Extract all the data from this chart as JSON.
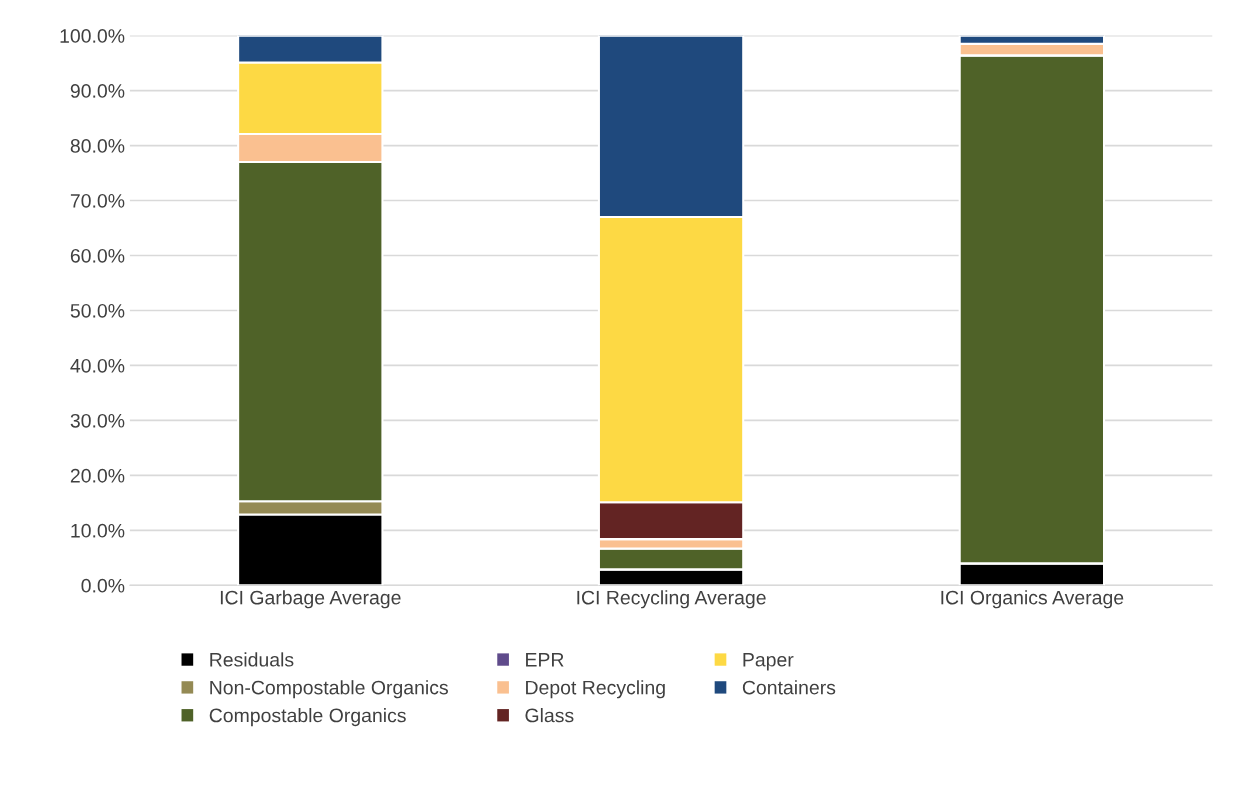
{
  "chart_data": {
    "type": "bar",
    "stacked": true,
    "categories": [
      "ICI Garbage Average",
      "ICI Recycling Average",
      "ICI Organics Average"
    ],
    "series": [
      {
        "name": "Residuals",
        "color": "#000000",
        "values": [
          12.9,
          2.9,
          4.0
        ]
      },
      {
        "name": "Non-Compostable Organics",
        "color": "#948a54",
        "values": [
          2.4,
          0,
          0
        ]
      },
      {
        "name": "Compostable Organics",
        "color": "#4f6228",
        "values": [
          61.7,
          3.8,
          92.4
        ]
      },
      {
        "name": "EPR",
        "color": "#5f4b8b",
        "values": [
          0,
          0,
          0
        ]
      },
      {
        "name": "Depot Recycling",
        "color": "#fac090",
        "values": [
          5.1,
          1.7,
          2.1
        ]
      },
      {
        "name": "Glass",
        "color": "#632423",
        "values": [
          0,
          6.7,
          0
        ]
      },
      {
        "name": "Paper",
        "color": "#fdd944",
        "values": [
          13.0,
          51.9,
          0
        ]
      },
      {
        "name": "Containers",
        "color": "#1f497d",
        "values": [
          4.9,
          33.0,
          1.5
        ]
      }
    ],
    "ylim": [
      0,
      100
    ],
    "yticks": [
      {
        "value": 0,
        "label": "0.0%"
      },
      {
        "value": 10,
        "label": "10.0%"
      },
      {
        "value": 20,
        "label": "20.0%"
      },
      {
        "value": 30,
        "label": "30.0%"
      },
      {
        "value": 40,
        "label": "40.0%"
      },
      {
        "value": 50,
        "label": "50.0%"
      },
      {
        "value": 60,
        "label": "60.0%"
      },
      {
        "value": 70,
        "label": "70.0%"
      },
      {
        "value": 80,
        "label": "80.0%"
      },
      {
        "value": 90,
        "label": "90.0%"
      },
      {
        "value": 100,
        "label": "100.0%"
      }
    ],
    "grid": "y",
    "legend": "bottom"
  }
}
